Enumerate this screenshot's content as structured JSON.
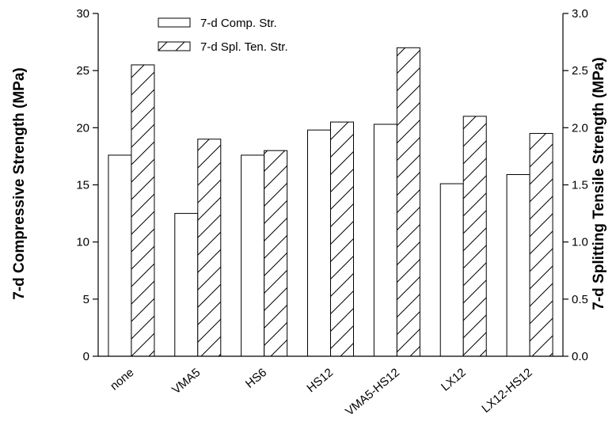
{
  "chart_data": {
    "type": "bar",
    "title": "",
    "categories": [
      "none",
      "VMA5",
      "HS6",
      "HS12",
      "VMA5-HS12",
      "LX12",
      "LX12-HS12"
    ],
    "series": [
      {
        "name": "7-d Comp. Str.",
        "axis": "left",
        "fill": "plain",
        "values": [
          17.6,
          12.5,
          17.6,
          19.8,
          20.3,
          15.1,
          15.9
        ]
      },
      {
        "name": "7-d Spl. Ten. Str.",
        "axis": "right",
        "fill": "hatched",
        "values": [
          2.55,
          1.9,
          1.8,
          2.05,
          2.7,
          2.1,
          1.95
        ]
      }
    ],
    "ylabel": "7-d Compressive Strength (MPa)",
    "ylabel_right": "7-d Splitting Tensile Strength (MPa)",
    "xlabel": "",
    "ylim": [
      0,
      30
    ],
    "ylim_right": [
      0,
      3.0
    ],
    "yticks": [
      "0",
      "5",
      "10",
      "15",
      "20",
      "25",
      "30"
    ],
    "yticks_right": [
      "0.0",
      "0.5",
      "1.0",
      "1.5",
      "2.0",
      "2.5",
      "3.0"
    ],
    "legend": "top-left",
    "grid": false,
    "colors": {
      "bar_fill": "#ffffff",
      "stroke": "#000000",
      "hatch": "#000000"
    }
  }
}
